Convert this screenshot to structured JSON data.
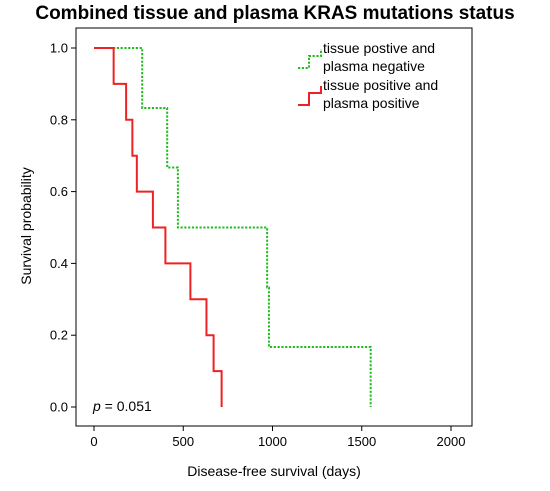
{
  "chart_data": {
    "type": "line",
    "subtype": "kaplan-meier step",
    "title": "Combined tissue and plasma KRAS mutations status",
    "xlabel": "Disease-free survival (days)",
    "ylabel": "Survival probability",
    "xlim": [
      0,
      2000
    ],
    "ylim": [
      0,
      1
    ],
    "xticks": [
      0,
      500,
      1000,
      1500,
      2000
    ],
    "yticks": [
      0.0,
      0.2,
      0.4,
      0.6,
      0.8,
      1.0
    ],
    "x_tick_labels": [
      "0",
      "500",
      "1000",
      "1500",
      "2000"
    ],
    "y_tick_labels": [
      "0.0",
      "0.2",
      "0.4",
      "0.6",
      "0.8",
      "1.0"
    ],
    "grid": false,
    "legend_position": "top-right",
    "annotation": {
      "italic": "p",
      "rest": " = 0.051"
    },
    "series": [
      {
        "name": "tissue postive and plasma negative",
        "legend_lines": [
          "tissue postive and",
          "plasma negative"
        ],
        "color": "#22bb22",
        "dash": "dotted",
        "steps": [
          [
            0,
            1.0
          ],
          [
            270,
            0.833
          ],
          [
            410,
            0.667
          ],
          [
            470,
            0.5
          ],
          [
            970,
            0.333
          ],
          [
            980,
            0.167
          ],
          [
            1550,
            0.0
          ]
        ],
        "end_x": 1550
      },
      {
        "name": "tissue positive and plasma positive",
        "legend_lines": [
          "tissue positive and",
          "plasma positive"
        ],
        "color": "#ee2222",
        "dash": "solid",
        "steps": [
          [
            0,
            1.0
          ],
          [
            110,
            0.9
          ],
          [
            180,
            0.8
          ],
          [
            215,
            0.7
          ],
          [
            240,
            0.6
          ],
          [
            330,
            0.5
          ],
          [
            400,
            0.4
          ],
          [
            540,
            0.3
          ],
          [
            630,
            0.2
          ],
          [
            670,
            0.1
          ],
          [
            715,
            0.0
          ]
        ],
        "end_x": 715
      }
    ]
  }
}
